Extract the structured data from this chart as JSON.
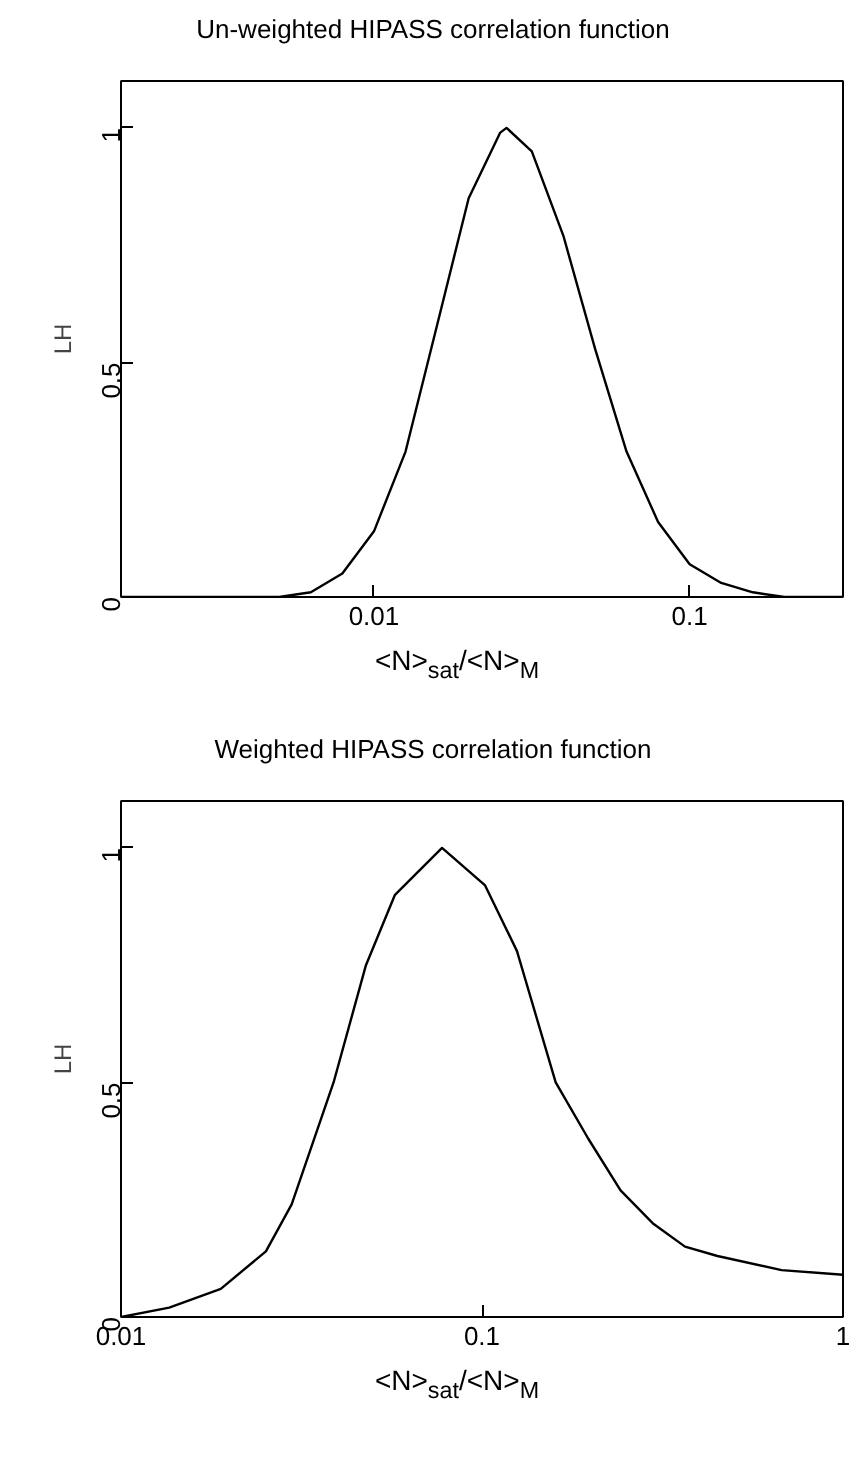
{
  "chart_data": [
    {
      "type": "line",
      "title": "Un-weighted HIPASS correlation function",
      "xlabel": "<N>$_{sat}$/<N>$_{M}$",
      "ylabel": "LH",
      "log": "x",
      "grid": false,
      "x": [
        0.00158,
        0.00251,
        0.00398,
        0.00501,
        0.00631,
        0.00794,
        0.01,
        0.01259,
        0.01585,
        0.01995,
        0.02512,
        0.0263,
        0.03162,
        0.03981,
        0.05012,
        0.0631,
        0.07943,
        0.1,
        0.1259,
        0.1585,
        0.1995,
        0.2512,
        0.306
      ],
      "series": [
        {
          "color": "#000000",
          "values": [
            0,
            0,
            0,
            0,
            0.01,
            0.05,
            0.14,
            0.31,
            0.58,
            0.85,
            0.99,
            1,
            0.95,
            0.77,
            0.53,
            0.31,
            0.16,
            0.07,
            0.03,
            0.01,
            0,
            0,
            0
          ]
        }
      ],
      "xlim": [
        0.00158,
        0.306
      ],
      "ylim": [
        0,
        1.1
      ],
      "xticks": [
        0.01,
        0.1
      ],
      "yticks": [
        0,
        0.5,
        1
      ]
    },
    {
      "type": "line",
      "title": "Weighted HIPASS correlation function",
      "xlabel": "<N>$_{sat}$/<N>$_{M}$",
      "ylabel": "LH",
      "log": "x",
      "grid": false,
      "x": [
        0.01,
        0.0136,
        0.0189,
        0.0252,
        0.0297,
        0.0388,
        0.0477,
        0.0574,
        0.0775,
        0.102,
        0.125,
        0.16,
        0.197,
        0.242,
        0.297,
        0.365,
        0.449,
        0.676,
        1
      ],
      "series": [
        {
          "color": "#000000",
          "values": [
            0,
            0.02,
            0.06,
            0.14,
            0.24,
            0.5,
            0.75,
            0.9,
            1,
            0.92,
            0.78,
            0.5,
            0.38,
            0.27,
            0.2,
            0.15,
            0.13,
            0.1,
            0.09
          ]
        }
      ],
      "xlim": [
        0.01,
        1
      ],
      "ylim": [
        0,
        1.1
      ],
      "xticks": [
        0.01,
        0.1,
        1
      ],
      "yticks": [
        0,
        0.5,
        1
      ]
    }
  ]
}
